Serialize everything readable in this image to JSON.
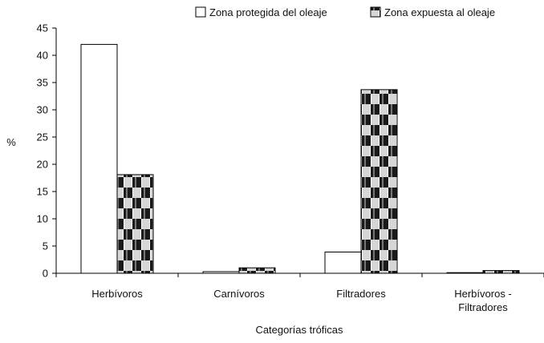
{
  "chart_data": {
    "type": "bar",
    "categories": [
      "Herbívoros",
      "Carnívoros",
      "Filtradores",
      "Herbívoros - Filtradores"
    ],
    "category_lines": [
      [
        "Herbívoros"
      ],
      [
        "Carnívoros"
      ],
      [
        "Filtradores"
      ],
      [
        "Herbívoros -",
        "Filtradores"
      ]
    ],
    "series": [
      {
        "name": "Zona protegida del oleaje",
        "values": [
          42.0,
          0.3,
          3.9,
          0.1
        ],
        "pattern": "white",
        "color": "#ffffff"
      },
      {
        "name": "Zona expuesta al oleaje",
        "values": [
          18.1,
          1.0,
          33.7,
          0.5
        ],
        "pattern": "checker",
        "color": "#000000"
      }
    ],
    "title": "",
    "xlabel": "Categorías tróficas",
    "ylabel": "%",
    "ylim": [
      0,
      45
    ],
    "yticks": [
      0,
      5,
      10,
      15,
      20,
      25,
      30,
      35,
      40,
      45
    ],
    "grid": false,
    "legend": "top-right"
  }
}
